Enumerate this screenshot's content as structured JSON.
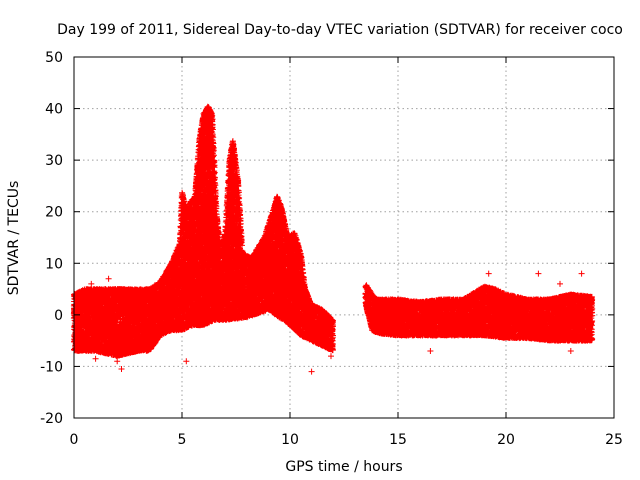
{
  "chart_data": {
    "type": "scatter",
    "title": "Day 199 of 2011, Sidereal Day-to-day VTEC variation (SDTVAR) for receiver coco",
    "xlabel": "GPS time / hours",
    "ylabel": "SDTVAR / TECUs",
    "xlim": [
      0,
      25
    ],
    "ylim": [
      -20,
      50
    ],
    "xticks": [
      0,
      5,
      10,
      15,
      20,
      25
    ],
    "yticks": [
      -20,
      -10,
      0,
      10,
      20,
      30,
      40,
      50
    ],
    "grid": true,
    "marker": "+",
    "color": "#ff0000",
    "series": [
      {
        "name": "SDTVAR",
        "upper_envelope": [
          [
            0.0,
            4
          ],
          [
            0.5,
            5
          ],
          [
            1.0,
            5
          ],
          [
            2.0,
            5
          ],
          [
            3.0,
            5
          ],
          [
            3.5,
            5
          ],
          [
            4.0,
            6.5
          ],
          [
            4.5,
            10
          ],
          [
            4.9,
            14
          ],
          [
            5.0,
            24
          ],
          [
            5.2,
            20
          ],
          [
            5.4,
            22
          ],
          [
            5.6,
            23
          ],
          [
            5.8,
            34
          ],
          [
            6.0,
            39
          ],
          [
            6.2,
            40.5
          ],
          [
            6.4,
            39
          ],
          [
            6.6,
            20
          ],
          [
            6.8,
            12
          ],
          [
            7.0,
            16
          ],
          [
            7.2,
            30
          ],
          [
            7.35,
            34
          ],
          [
            7.6,
            26
          ],
          [
            7.8,
            12
          ],
          [
            8.2,
            11
          ],
          [
            8.8,
            15
          ],
          [
            9.2,
            20
          ],
          [
            9.4,
            23
          ],
          [
            9.6,
            21
          ],
          [
            9.9,
            15
          ],
          [
            10.2,
            16
          ],
          [
            10.5,
            12
          ],
          [
            10.7,
            5
          ],
          [
            11.0,
            2
          ],
          [
            11.5,
            1
          ],
          [
            12.0,
            -1
          ],
          [
            13.5,
            6
          ],
          [
            13.8,
            4
          ],
          [
            14.0,
            3
          ],
          [
            15.0,
            3
          ],
          [
            16.0,
            2.5
          ],
          [
            17.0,
            3
          ],
          [
            18.0,
            3
          ],
          [
            19.0,
            5.5
          ],
          [
            19.5,
            5
          ],
          [
            20.0,
            4
          ],
          [
            21.0,
            3
          ],
          [
            22.0,
            3
          ],
          [
            23.0,
            4
          ],
          [
            24.0,
            3.5
          ]
        ],
        "lower_envelope": [
          [
            0.0,
            -7
          ],
          [
            0.5,
            -7
          ],
          [
            1.0,
            -7
          ],
          [
            2.0,
            -8
          ],
          [
            3.0,
            -7
          ],
          [
            3.5,
            -7
          ],
          [
            4.0,
            -4
          ],
          [
            4.5,
            -3
          ],
          [
            5.0,
            -3
          ],
          [
            5.5,
            -2
          ],
          [
            6.0,
            -2
          ],
          [
            6.5,
            -1
          ],
          [
            7.0,
            -1
          ],
          [
            8.0,
            -0.5
          ],
          [
            9.0,
            1
          ],
          [
            10.0,
            -2
          ],
          [
            10.5,
            -4
          ],
          [
            11.0,
            -5
          ],
          [
            11.5,
            -6
          ],
          [
            12.0,
            -7
          ],
          [
            13.5,
            2
          ],
          [
            13.8,
            -3
          ],
          [
            14.0,
            -3.5
          ],
          [
            15.0,
            -4
          ],
          [
            16.0,
            -4
          ],
          [
            17.0,
            -4
          ],
          [
            18.0,
            -4
          ],
          [
            19.0,
            -4
          ],
          [
            20.0,
            -4.5
          ],
          [
            21.0,
            -4.5
          ],
          [
            22.0,
            -5
          ],
          [
            23.0,
            -5
          ],
          [
            24.0,
            -5
          ]
        ],
        "outliers": [
          [
            2.2,
            -10.5
          ],
          [
            2.0,
            -9
          ],
          [
            5.2,
            -9
          ],
          [
            1.0,
            -8.5
          ],
          [
            11.0,
            -11
          ],
          [
            11.9,
            -8
          ],
          [
            23.0,
            -7
          ],
          [
            16.5,
            -7
          ],
          [
            3.3,
            -6
          ],
          [
            0.3,
            -6
          ],
          [
            21.5,
            8
          ],
          [
            23.5,
            8
          ],
          [
            19.2,
            8
          ],
          [
            1.6,
            7
          ],
          [
            0.8,
            6
          ],
          [
            22.5,
            6
          ]
        ]
      }
    ]
  }
}
